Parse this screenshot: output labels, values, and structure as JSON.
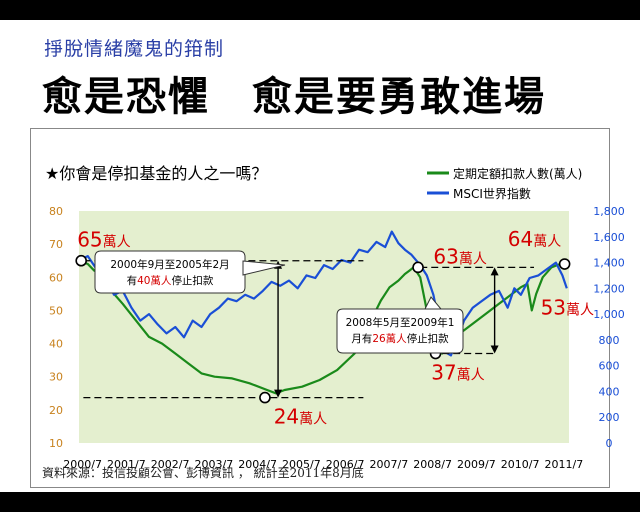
{
  "slide": {
    "subtitle": "掙脫情緒魔鬼的箝制",
    "title": "愈是恐懼　愈是要勇敢進場",
    "source": "資料來源：投信投顧公會、彭博資訊 ， 統計至2011年8月底"
  },
  "chart_data": {
    "type": "line",
    "question": "★你會是停扣基金的人之一嗎？",
    "x": [
      "2000/7",
      "2001/7",
      "2002/7",
      "2003/7",
      "2004/7",
      "2005/7",
      "2006/7",
      "2007/7",
      "2008/7",
      "2009/7",
      "2010/7",
      "2011/7"
    ],
    "xlim": [
      2000.5,
      2011.7
    ],
    "y_left": {
      "lim": [
        10,
        80
      ],
      "ticks": [
        "10",
        "20",
        "30",
        "40",
        "50",
        "60",
        "70",
        "80"
      ],
      "color": "#c8821e"
    },
    "y_right": {
      "lim": [
        0,
        1800
      ],
      "ticks": [
        "0",
        "200",
        "400",
        "600",
        "800",
        "1,000",
        "1,200",
        "1,400",
        "1,600",
        "1,800"
      ],
      "color": "#1a4fd6"
    },
    "series": [
      {
        "name": "定期定額扣款人數(萬人)",
        "axis": "left",
        "color": "#1a8a1a",
        "x": [
          2000.5,
          2000.7,
          2000.85,
          2001.0,
          2001.15,
          2001.3,
          2001.5,
          2001.8,
          2002.1,
          2002.4,
          2002.7,
          2003.0,
          2003.3,
          2003.6,
          2004.0,
          2004.4,
          2004.8,
          2005.0,
          2005.2,
          2005.6,
          2006.0,
          2006.4,
          2006.8,
          2007.1,
          2007.4,
          2007.6,
          2007.8,
          2007.95,
          2008.05,
          2008.15,
          2008.3,
          2008.45,
          2008.6,
          2008.8,
          2009.0,
          2009.2,
          2009.5,
          2009.8,
          2010.1,
          2010.4,
          2010.6,
          2010.75,
          2010.85,
          2010.95,
          2011.1,
          2011.3,
          2011.5,
          2011.65
        ],
        "y": [
          65,
          64,
          62,
          61,
          58,
          55,
          52,
          47,
          42,
          40,
          37,
          34,
          31,
          30,
          29.5,
          28,
          26,
          25,
          26,
          27,
          29,
          32,
          37,
          45,
          53,
          57,
          59,
          61,
          62,
          63,
          60,
          50,
          40,
          37,
          40,
          43,
          46,
          49,
          52,
          55,
          57,
          58,
          50,
          55,
          60,
          63,
          64,
          63
        ]
      },
      {
        "name": "MSCI世界指數",
        "axis": "right",
        "color": "#1a4fd6",
        "x": [
          2000.5,
          2000.7,
          2000.9,
          2001.1,
          2001.3,
          2001.5,
          2001.7,
          2001.9,
          2002.1,
          2002.3,
          2002.5,
          2002.7,
          2002.9,
          2003.1,
          2003.3,
          2003.5,
          2003.7,
          2003.9,
          2004.1,
          2004.3,
          2004.5,
          2004.7,
          2004.9,
          2005.1,
          2005.3,
          2005.5,
          2005.7,
          2005.9,
          2006.1,
          2006.3,
          2006.5,
          2006.7,
          2006.9,
          2007.1,
          2007.3,
          2007.5,
          2007.65,
          2007.8,
          2007.95,
          2008.1,
          2008.3,
          2008.45,
          2008.6,
          2008.75,
          2008.9,
          2009.0,
          2009.15,
          2009.3,
          2009.5,
          2009.7,
          2009.9,
          2010.1,
          2010.3,
          2010.45,
          2010.6,
          2010.8,
          2011.0,
          2011.2,
          2011.4,
          2011.55,
          2011.65
        ],
        "y": [
          1420,
          1450,
          1350,
          1280,
          1150,
          1180,
          1050,
          950,
          1000,
          920,
          850,
          900,
          820,
          950,
          900,
          1000,
          1050,
          1120,
          1100,
          1150,
          1120,
          1180,
          1250,
          1220,
          1260,
          1200,
          1300,
          1280,
          1380,
          1350,
          1420,
          1400,
          1500,
          1480,
          1560,
          1520,
          1640,
          1550,
          1500,
          1460,
          1380,
          1300,
          1150,
          900,
          700,
          680,
          800,
          950,
          1050,
          1100,
          1150,
          1180,
          1050,
          1200,
          1150,
          1280,
          1300,
          1350,
          1400,
          1300,
          1200
        ]
      }
    ],
    "annotations": {
      "peak_2000": "65萬人",
      "trough_2005": "24萬人",
      "peak_2008": "63萬人",
      "trough_2009": "37萬人",
      "peak_2011": "64萬人",
      "drop_2011": "53萬人",
      "callout1": {
        "line1": "2000年9月至2005年2月",
        "line2_pre": "有",
        "line2_highlight": "40萬人",
        "line2_post": "停止扣款"
      },
      "callout2": {
        "line1": "2008年5月至2009年1",
        "line2_pre": "月有",
        "line2_highlight": "26萬人",
        "line2_post": "停止扣款"
      }
    }
  }
}
